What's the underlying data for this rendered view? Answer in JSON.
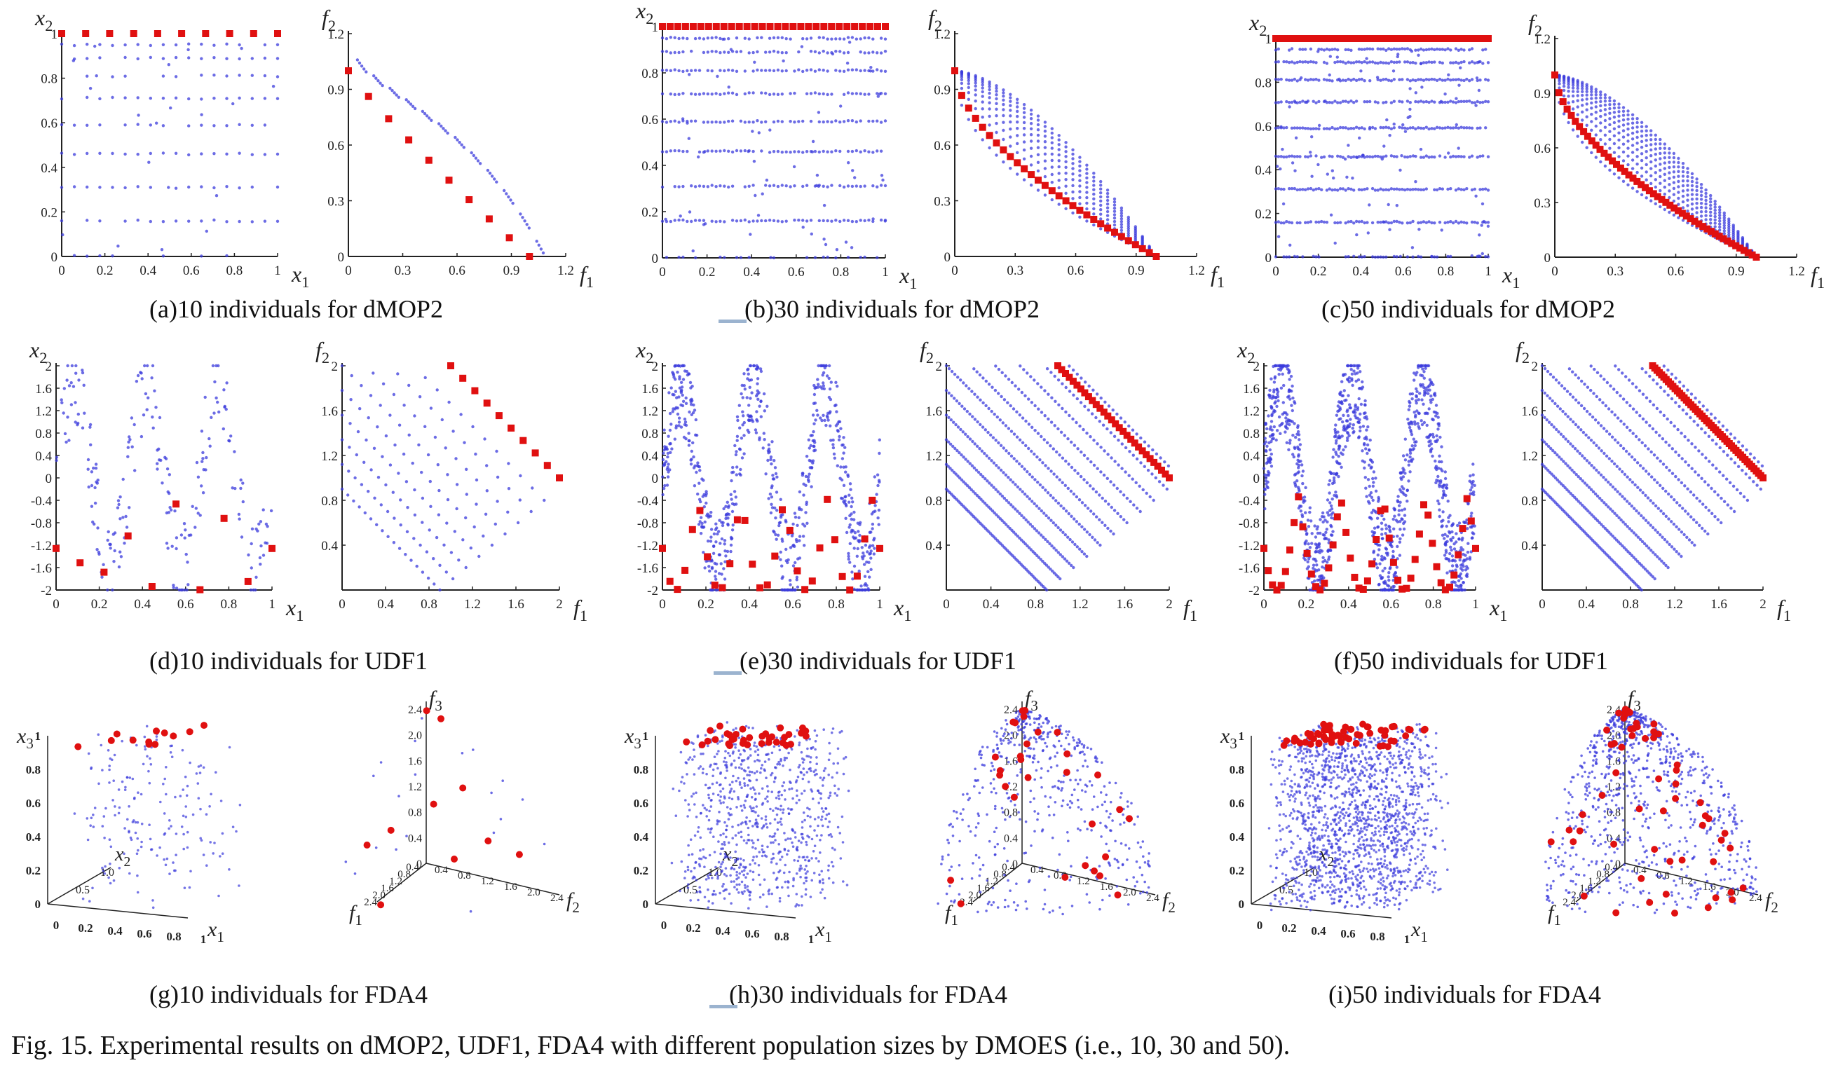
{
  "figure": {
    "caption": "Fig. 15. Experimental results on dMOP2, UDF1, FDA4 with different population sizes by DMOES (i.e., 10, 30 and 50).",
    "panel_captions": [
      "(a)10 individuals for dMOP2",
      "(b)30 individuals for dMOP2",
      "(c)50 individuals for dMOP2",
      "(d)10 individuals for UDF1",
      "(e)30 individuals for UDF1",
      "(f)50 individuals for UDF1",
      "(g)10 individuals for FDA4",
      "(h)30 individuals for FDA4",
      "(i)50 individuals for FDA4"
    ],
    "colors": {
      "population": "#3b3bdc",
      "pareto": "#e01010",
      "axis": "#222222"
    }
  },
  "chart_data": [
    {
      "id": "a-ps",
      "type": "scatter",
      "problem": "dMOP2",
      "pop_size": 10,
      "xlabel": "x1",
      "ylabel": "x2",
      "xlim": [
        0,
        1
      ],
      "ylim": [
        0,
        1
      ],
      "xticks": [
        "0",
        "0.2",
        "0.4",
        "0.6",
        "0.8",
        "1"
      ],
      "yticks": [
        "0",
        "0.2",
        "0.4",
        "0.6",
        "0.8",
        "1"
      ],
      "series": [
        {
          "kind": "population"
        },
        {
          "kind": "pareto",
          "values_y": 1
        }
      ]
    },
    {
      "id": "a-pf",
      "type": "scatter",
      "problem": "dMOP2",
      "pop_size": 10,
      "xlabel": "f1",
      "ylabel": "f2",
      "xlim": [
        0,
        1.2
      ],
      "ylim": [
        0,
        1.2
      ],
      "xticks": [
        "0",
        "0.3",
        "0.6",
        "0.9",
        "1.2"
      ],
      "yticks": [
        "0",
        "0.3",
        "0.6",
        "0.9",
        "1.2"
      ]
    },
    {
      "id": "b-ps",
      "type": "scatter",
      "problem": "dMOP2",
      "pop_size": 30,
      "xlabel": "x1",
      "ylabel": "x2",
      "xlim": [
        0,
        1
      ],
      "ylim": [
        0,
        1
      ],
      "xticks": [
        "0",
        "0.2",
        "0.4",
        "0.6",
        "0.8",
        "1"
      ],
      "yticks": [
        "0",
        "0.2",
        "0.4",
        "0.6",
        "0.8",
        "1"
      ]
    },
    {
      "id": "b-pf",
      "type": "scatter",
      "problem": "dMOP2",
      "pop_size": 30,
      "xlabel": "f1",
      "ylabel": "f2",
      "xlim": [
        0,
        1.2
      ],
      "ylim": [
        0,
        1.2
      ],
      "xticks": [
        "0",
        "0.3",
        "0.6",
        "0.9",
        "1.2"
      ],
      "yticks": [
        "0",
        "0.3",
        "0.6",
        "0.9",
        "1.2"
      ]
    },
    {
      "id": "c-ps",
      "type": "scatter",
      "problem": "dMOP2",
      "pop_size": 50,
      "xlabel": "x1",
      "ylabel": "x2",
      "xlim": [
        0,
        1
      ],
      "ylim": [
        0,
        1
      ],
      "xticks": [
        "0",
        "0.2",
        "0.4",
        "0.6",
        "0.8",
        "1"
      ],
      "yticks": [
        "0",
        "0.2",
        "0.4",
        "0.6",
        "0.8",
        "1"
      ]
    },
    {
      "id": "c-pf",
      "type": "scatter",
      "problem": "dMOP2",
      "pop_size": 50,
      "xlabel": "f1",
      "ylabel": "f2",
      "xlim": [
        0,
        1.2
      ],
      "ylim": [
        0,
        1.2
      ],
      "xticks": [
        "0",
        "0.3",
        "0.6",
        "0.9",
        "1.2"
      ],
      "yticks": [
        "0",
        "0.3",
        "0.6",
        "0.9",
        "1.2"
      ]
    },
    {
      "id": "d-ps",
      "type": "scatter",
      "problem": "UDF1",
      "pop_size": 10,
      "xlabel": "x1",
      "ylabel": "x2",
      "xlim": [
        0,
        1
      ],
      "ylim": [
        -2,
        2
      ],
      "xticks": [
        "0",
        "0.2",
        "0.4",
        "0.6",
        "0.8",
        "1"
      ],
      "yticks": [
        "-2",
        "-1.6",
        "-1.2",
        "-0.8",
        "-0.4",
        "0",
        "0.4",
        "0.8",
        "1.2",
        "1.6",
        "2"
      ]
    },
    {
      "id": "d-pf",
      "type": "scatter",
      "problem": "UDF1",
      "pop_size": 10,
      "xlabel": "f1",
      "ylabel": "f2",
      "xlim": [
        0,
        2
      ],
      "ylim": [
        0,
        2
      ],
      "xticks": [
        "0",
        "0.4",
        "0.8",
        "1.2",
        "1.6",
        "2"
      ],
      "yticks": [
        "0.4",
        "0.8",
        "1.2",
        "1.6",
        "2"
      ]
    },
    {
      "id": "e-ps",
      "type": "scatter",
      "problem": "UDF1",
      "pop_size": 30,
      "xlabel": "x1",
      "ylabel": "x2",
      "xlim": [
        0,
        1
      ],
      "ylim": [
        -2,
        2
      ],
      "xticks": [
        "0",
        "0.2",
        "0.4",
        "0.6",
        "0.8",
        "1"
      ],
      "yticks": [
        "-2",
        "-1.6",
        "-1.2",
        "-0.8",
        "-0.4",
        "0",
        "0.4",
        "0.8",
        "1.2",
        "1.6",
        "2"
      ]
    },
    {
      "id": "e-pf",
      "type": "scatter",
      "problem": "UDF1",
      "pop_size": 30,
      "xlabel": "f1",
      "ylabel": "f2",
      "xlim": [
        0,
        2
      ],
      "ylim": [
        0,
        2
      ],
      "xticks": [
        "0",
        "0.4",
        "0.8",
        "1.2",
        "1.6",
        "2"
      ],
      "yticks": [
        "0.4",
        "0.8",
        "1.2",
        "1.6",
        "2"
      ]
    },
    {
      "id": "f-ps",
      "type": "scatter",
      "problem": "UDF1",
      "pop_size": 50,
      "xlabel": "x1",
      "ylabel": "x2",
      "xlim": [
        0,
        1
      ],
      "ylim": [
        -2,
        2
      ],
      "xticks": [
        "0",
        "0.2",
        "0.4",
        "0.6",
        "0.8",
        "1"
      ],
      "yticks": [
        "-2",
        "-1.6",
        "-1.2",
        "-0.8",
        "-0.4",
        "0",
        "0.4",
        "0.8",
        "1.2",
        "1.6",
        "2"
      ]
    },
    {
      "id": "f-pf",
      "type": "scatter",
      "problem": "UDF1",
      "pop_size": 50,
      "xlabel": "f1",
      "ylabel": "f2",
      "xlim": [
        0,
        2
      ],
      "ylim": [
        0,
        2
      ],
      "xticks": [
        "0",
        "0.4",
        "0.8",
        "1.2",
        "1.6",
        "2"
      ],
      "yticks": [
        "0.4",
        "0.8",
        "1.2",
        "1.6",
        "2"
      ]
    },
    {
      "id": "g-ps",
      "type": "scatter3d",
      "problem": "FDA4",
      "pop_size": 10,
      "xlabel": "x1",
      "ylabel": "x2",
      "zlabel": "x3",
      "xticks": [
        "0",
        "0.2",
        "0.4",
        "0.6",
        "0.8",
        "1"
      ],
      "zticks": [
        "0",
        "0.2",
        "0.4",
        "0.6",
        "0.8",
        "1"
      ],
      "yticks": [
        "0.5",
        "1.0"
      ]
    },
    {
      "id": "g-pf",
      "type": "scatter3d",
      "problem": "FDA4",
      "pop_size": 10,
      "xlabel": "f1",
      "ylabel": "f2",
      "zlabel": "f3",
      "zticks": [
        "0",
        "0.4",
        "0.8",
        "1.2",
        "1.6",
        "2.0",
        "2.4"
      ],
      "xticks": [
        "0.4",
        "0.8",
        "1.2",
        "1.6",
        "2.0",
        "2.4"
      ],
      "yticks": [
        "0.4",
        "0.8",
        "1.2",
        "1.6",
        "2.0",
        "2.4"
      ]
    },
    {
      "id": "h-ps",
      "type": "scatter3d",
      "problem": "FDA4",
      "pop_size": 30,
      "xlabel": "x1",
      "ylabel": "x2",
      "zlabel": "x3",
      "xticks": [
        "0",
        "0.2",
        "0.4",
        "0.6",
        "0.8",
        "1"
      ],
      "zticks": [
        "0",
        "0.2",
        "0.4",
        "0.6",
        "0.8",
        "1"
      ],
      "yticks": [
        "0.5",
        "1.0"
      ]
    },
    {
      "id": "h-pf",
      "type": "scatter3d",
      "problem": "FDA4",
      "pop_size": 30,
      "xlabel": "f1",
      "ylabel": "f2",
      "zlabel": "f3",
      "zticks": [
        "0",
        "0.4",
        "0.8",
        "1.2",
        "1.6",
        "2.0",
        "2.4"
      ],
      "xticks": [
        "0.4",
        "0.8",
        "1.2",
        "1.6",
        "2.0",
        "2.4"
      ],
      "yticks": [
        "0.4",
        "0.8",
        "1.2",
        "1.6",
        "2.0",
        "2.4"
      ]
    },
    {
      "id": "i-ps",
      "type": "scatter3d",
      "problem": "FDA4",
      "pop_size": 50,
      "xlabel": "x1",
      "ylabel": "x2",
      "zlabel": "x3",
      "xticks": [
        "0",
        "0.2",
        "0.4",
        "0.6",
        "0.8",
        "1"
      ],
      "zticks": [
        "0",
        "0.2",
        "0.4",
        "0.6",
        "0.8",
        "1"
      ],
      "yticks": [
        "0.5",
        "1.0"
      ]
    },
    {
      "id": "i-pf",
      "type": "scatter3d",
      "problem": "FDA4",
      "pop_size": 50,
      "xlabel": "f1",
      "ylabel": "f2",
      "zlabel": "f3",
      "zticks": [
        "0",
        "0.4",
        "0.8",
        "1.2",
        "1.6",
        "2.0",
        "2.4"
      ],
      "xticks": [
        "0.4",
        "0.8",
        "1.2",
        "1.6",
        "2.0",
        "2.4"
      ],
      "yticks": [
        "0.4",
        "0.8",
        "1.2",
        "1.6",
        "2.0",
        "2.4"
      ]
    }
  ]
}
